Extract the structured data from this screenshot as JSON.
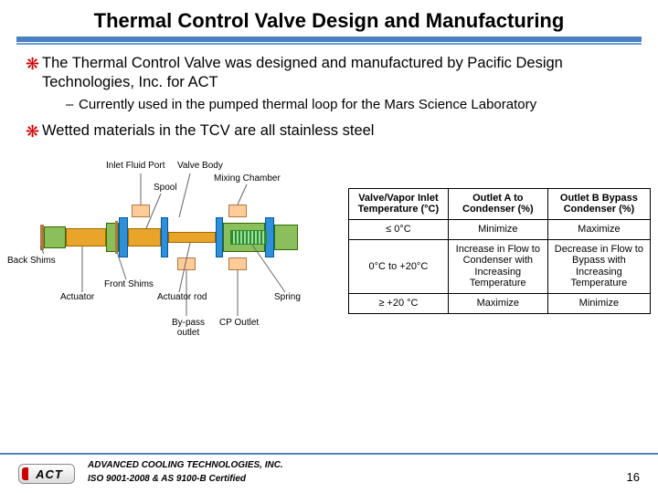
{
  "colors": {
    "rule_thick": "#4a7fc0",
    "rule_thin": "#6a9bd3",
    "bullet_asterisk": "#cc0000"
  },
  "title": "Thermal Control Valve Design and Manufacturing",
  "bullets": [
    {
      "text": "The Thermal Control Valve was designed and manufactured by Pacific Design Technologies, Inc. for ACT",
      "sub": [
        "Currently used in the pumped thermal loop for the Mars Science Laboratory"
      ]
    },
    {
      "text": "Wetted materials in the TCV are all stainless steel",
      "sub": []
    }
  ],
  "diagram_labels": {
    "inlet": "Inlet Fluid Port",
    "valve_body": "Valve Body",
    "spool": "Spool",
    "mixing_chamber": "Mixing Chamber",
    "back_shims": "Back Shims",
    "front_shims": "Front Shims",
    "actuator": "Actuator",
    "actuator_rod": "Actuator rod",
    "spring": "Spring",
    "bypass_outlet": "By-pass outlet",
    "cp_outlet": "CP Outlet"
  },
  "table": {
    "columns": [
      "Valve/Vapor Inlet Temperature (°C)",
      "Outlet A to Condenser (%)",
      "Outlet B Bypass Condenser (%)"
    ],
    "rows": [
      [
        "≤ 0°C",
        "Minimize",
        "Maximize"
      ],
      [
        "0°C to +20°C",
        "Increase in Flow to Condenser with Increasing Temperature",
        "Decrease in Flow to Bypass with Increasing Temperature"
      ],
      [
        "≥ +20 °C",
        "Maximize",
        "Minimize"
      ]
    ],
    "col_widths_pct": [
      33,
      33,
      34
    ]
  },
  "footer": {
    "logo_text": "ACT",
    "line1": "ADVANCED COOLING TECHNOLOGIES, INC.",
    "line2": "ISO 9001-2008 & AS 9100-B Certified",
    "page": "16"
  }
}
